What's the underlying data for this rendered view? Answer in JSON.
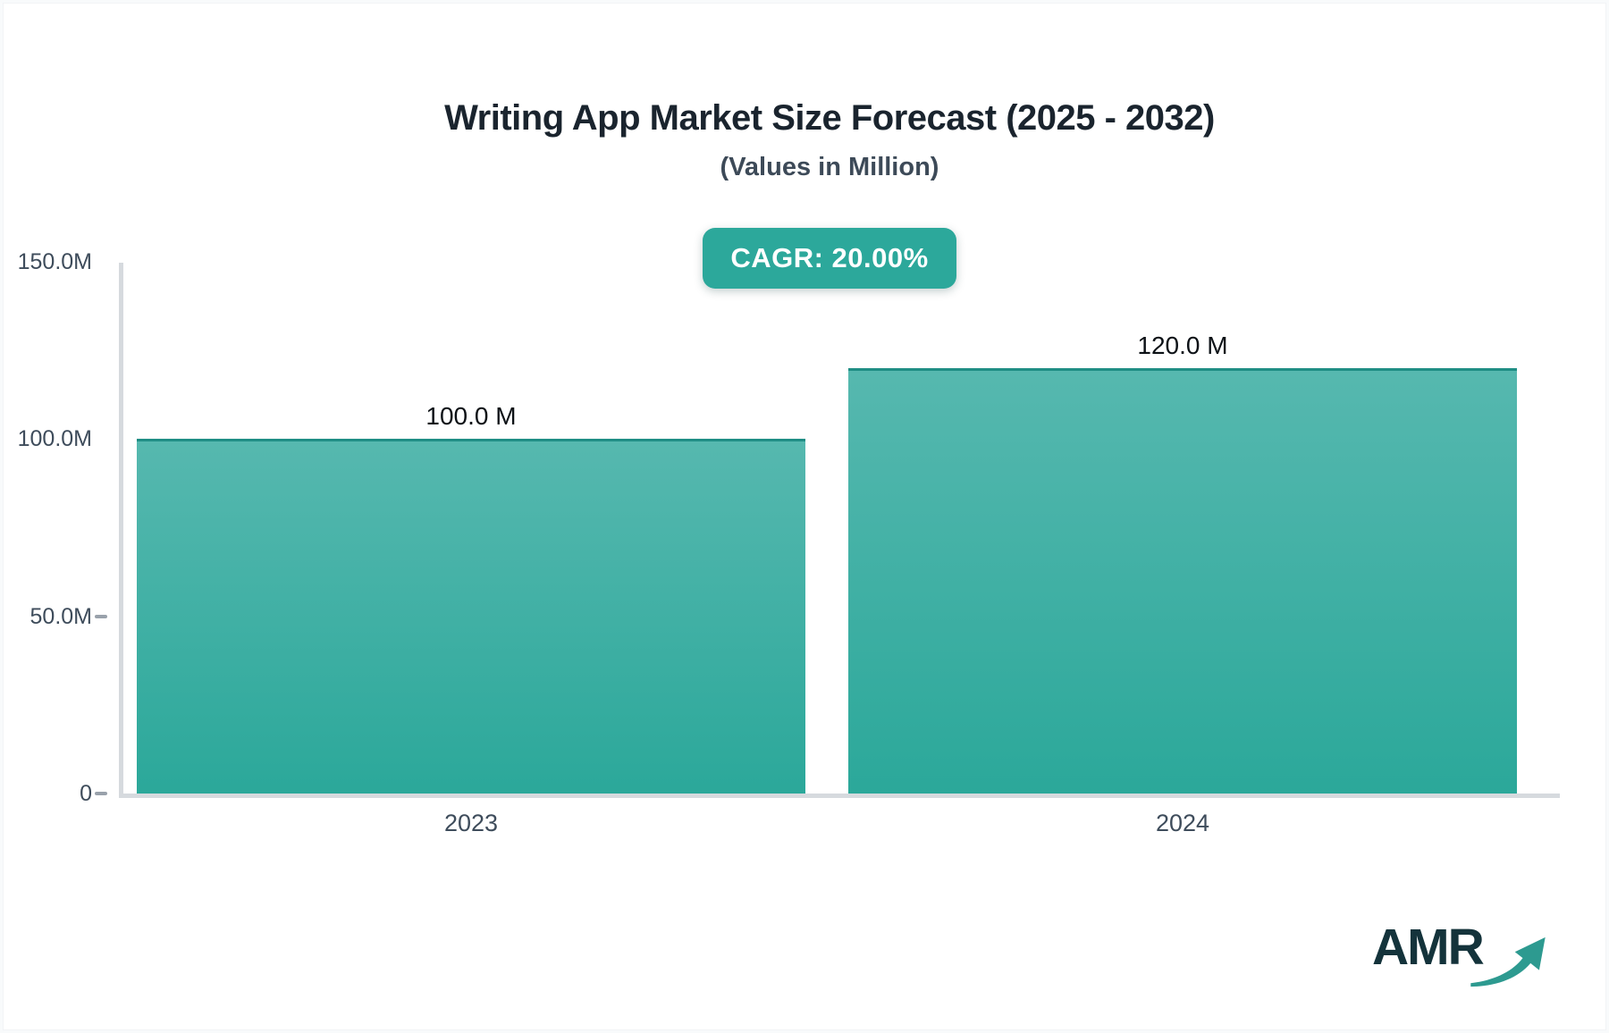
{
  "chart_data": {
    "type": "bar",
    "title": "Writing App Market Size Forecast (2025 - 2032)",
    "subtitle": "(Values in Million)",
    "annotation": "CAGR: 20.00%",
    "categories": [
      "2023",
      "2024"
    ],
    "values": [
      100.0,
      120.0
    ],
    "value_labels": [
      "100.0 M",
      "120.0 M"
    ],
    "unit": "Million",
    "ylim": [
      0,
      150
    ],
    "yticks": [
      {
        "label": "150.0M",
        "value": 150,
        "tick_mark": false
      },
      {
        "label": "100.0M",
        "value": 100,
        "tick_mark": false
      },
      {
        "label": "50.0M",
        "value": 50,
        "tick_mark": true
      },
      {
        "label": "0",
        "value": 0,
        "tick_mark": true
      }
    ],
    "grid": false,
    "legend": false
  },
  "colors": {
    "accent_teal": "#2ca89b",
    "bar_gradient_top": "#56b8af",
    "bar_gradient_bottom": "#2ba89a",
    "bar_top_stroke": "#1f8e85",
    "axis_gray": "#d6dade",
    "tick_gray": "#99a1ab",
    "label_slate": "#3e4c5b",
    "title_dark": "#1a242e",
    "logo_navy": "#14333b",
    "logo_arrow_teal": "#2d9a90"
  },
  "logo": {
    "text": "AMR"
  }
}
